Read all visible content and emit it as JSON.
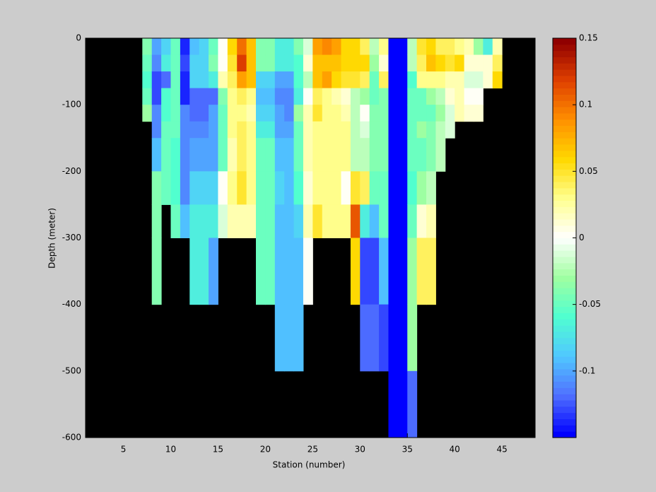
{
  "chart_data": {
    "type": "heatmap",
    "xlabel": "Station (number)",
    "ylabel": "Depth (meter)",
    "xlim": [
      1,
      48.5
    ],
    "ylim": [
      -600,
      0
    ],
    "xticks": [
      5,
      10,
      15,
      20,
      25,
      30,
      35,
      40,
      45
    ],
    "yticks": [
      0,
      -100,
      -200,
      -300,
      -400,
      -500,
      -600
    ],
    "clim": [
      -0.15,
      0.15
    ],
    "cticks": [
      0.15,
      0.1,
      0.05,
      0,
      -0.05,
      -0.1
    ],
    "colormap": [
      "#0000ff",
      "#5070ff",
      "#50c8ff",
      "#50ffd0",
      "#a0ffa0",
      "#ffffff",
      "#ffff90",
      "#ffd800",
      "#ff9000",
      "#e04000",
      "#900000"
    ],
    "background": "#000000",
    "x": [
      7,
      8,
      9,
      10,
      11,
      12,
      13,
      14,
      15,
      16,
      17,
      18,
      19,
      20,
      21,
      22,
      23,
      24,
      25,
      26,
      27,
      28,
      29,
      30,
      31,
      32,
      33,
      34,
      35,
      36,
      37,
      38,
      39,
      40,
      41,
      42,
      43,
      44
    ],
    "y": [
      0,
      -25,
      -50,
      -75,
      -100,
      -125,
      -150,
      -200,
      -250,
      -300,
      -400,
      -500
    ],
    "z": [
      [
        -0.04,
        -0.05,
        -0.06,
        -0.05,
        -0.03,
        null,
        null,
        null,
        null,
        null,
        null,
        null
      ],
      [
        -0.1,
        -0.11,
        -0.13,
        -0.13,
        -0.11,
        -0.11,
        -0.09,
        -0.04,
        -0.04,
        -0.04,
        null,
        null
      ],
      [
        -0.08,
        -0.07,
        -0.12,
        -0.06,
        -0.06,
        -0.05,
        -0.05,
        -0.05,
        null,
        null,
        null,
        null
      ],
      [
        -0.05,
        -0.05,
        -0.05,
        -0.05,
        -0.05,
        -0.05,
        -0.06,
        -0.06,
        -0.05,
        null,
        null,
        null
      ],
      [
        -0.14,
        -0.13,
        -0.14,
        -0.14,
        -0.11,
        -0.11,
        -0.11,
        -0.11,
        -0.09,
        null,
        null,
        null
      ],
      [
        -0.09,
        -0.08,
        -0.08,
        -0.12,
        -0.12,
        -0.11,
        -0.1,
        -0.08,
        -0.07,
        -0.07,
        null,
        null
      ],
      [
        -0.08,
        -0.08,
        -0.08,
        -0.12,
        -0.12,
        -0.11,
        -0.1,
        -0.08,
        -0.07,
        -0.07,
        null,
        null
      ],
      [
        -0.05,
        -0.04,
        -0.07,
        -0.12,
        -0.1,
        -0.1,
        -0.1,
        -0.08,
        -0.07,
        -0.1,
        null,
        null
      ],
      [
        0,
        0,
        0.02,
        -0.04,
        -0.05,
        -0.05,
        -0.05,
        0,
        -0.01,
        null,
        null,
        null
      ],
      [
        0.06,
        0.05,
        0.04,
        0.03,
        0.03,
        0.03,
        0.02,
        0.03,
        0.02,
        null,
        null,
        null
      ],
      [
        0.1,
        0.12,
        0.08,
        0.04,
        0.03,
        0.04,
        0.04,
        0.05,
        0.02,
        null,
        null,
        null
      ],
      [
        0.07,
        0.07,
        0.07,
        0.03,
        0.02,
        0.03,
        0.03,
        0.03,
        0.02,
        null,
        null,
        null
      ],
      [
        -0.04,
        -0.04,
        -0.08,
        -0.09,
        -0.08,
        -0.07,
        -0.05,
        -0.05,
        -0.05,
        -0.05,
        null,
        null
      ],
      [
        -0.04,
        -0.04,
        -0.08,
        -0.09,
        -0.08,
        -0.07,
        -0.05,
        -0.05,
        -0.05,
        -0.05,
        null,
        null
      ],
      [
        -0.07,
        -0.07,
        -0.1,
        -0.11,
        -0.1,
        -0.1,
        -0.09,
        -0.08,
        -0.09,
        -0.09,
        -0.09,
        null
      ],
      [
        -0.07,
        -0.07,
        -0.1,
        -0.11,
        -0.11,
        -0.1,
        -0.09,
        -0.09,
        -0.09,
        -0.09,
        -0.09,
        null
      ],
      [
        -0.04,
        -0.06,
        -0.06,
        -0.07,
        -0.03,
        -0.05,
        -0.05,
        -0.06,
        -0.08,
        -0.09,
        -0.09,
        null
      ],
      [
        -0.01,
        0.01,
        -0.02,
        0,
        0.02,
        0.02,
        0.02,
        0.01,
        0.02,
        0,
        null,
        null
      ],
      [
        0.08,
        0.07,
        0.07,
        0.04,
        0.05,
        0.03,
        0.03,
        0.03,
        0.05,
        null,
        null,
        null
      ],
      [
        0.09,
        0.07,
        0.08,
        0.03,
        0.03,
        0.03,
        0.03,
        0.03,
        0.03,
        null,
        null,
        null
      ],
      [
        0.08,
        0.07,
        0.06,
        0.02,
        0.03,
        0.03,
        0.03,
        0.03,
        0.03,
        null,
        null,
        null
      ],
      [
        0.06,
        0.06,
        0.05,
        0.01,
        0.02,
        0.03,
        0.03,
        0,
        0.03,
        null,
        null,
        null
      ],
      [
        0.06,
        0.06,
        0.05,
        -0.02,
        -0.02,
        -0.02,
        -0.02,
        0.05,
        0.11,
        0.06,
        null,
        null
      ],
      [
        0.04,
        0.06,
        0.04,
        -0.03,
        0,
        -0.01,
        -0.02,
        0.04,
        -0.07,
        -0.13,
        -0.12,
        null
      ],
      [
        -0.02,
        -0.03,
        -0.05,
        -0.05,
        -0.04,
        -0.04,
        -0.04,
        -0.05,
        -0.09,
        -0.13,
        -0.12,
        null
      ],
      [
        0.03,
        0.01,
        0.04,
        -0.04,
        -0.04,
        -0.04,
        -0.04,
        -0.05,
        -0.05,
        -0.09,
        -0.13,
        null
      ],
      [
        -0.15,
        -0.15,
        -0.15,
        -0.15,
        -0.15,
        -0.15,
        -0.15,
        -0.15,
        -0.15,
        -0.15,
        -0.15,
        -0.15
      ],
      [
        -0.15,
        -0.15,
        -0.15,
        -0.15,
        -0.15,
        -0.15,
        -0.15,
        -0.15,
        -0.15,
        -0.15,
        -0.15,
        -0.15
      ],
      [
        -0.02,
        -0.02,
        -0.06,
        -0.05,
        -0.05,
        -0.05,
        -0.05,
        -0.06,
        -0.05,
        -0.03,
        -0.03,
        -0.12
      ],
      [
        0.05,
        0.04,
        0.03,
        -0.05,
        -0.05,
        -0.03,
        -0.05,
        -0.03,
        0.01,
        0.04,
        null,
        null
      ],
      [
        0.06,
        0.07,
        0.03,
        -0.03,
        -0.05,
        -0.04,
        -0.04,
        -0.02,
        0.02,
        0.04,
        null,
        null
      ],
      [
        0.04,
        0.06,
        0.03,
        -0.02,
        -0.03,
        -0.02,
        -0.02,
        null,
        null,
        null,
        null,
        null
      ],
      [
        0.04,
        0.05,
        0.02,
        0.01,
        -0.01,
        -0.01,
        null,
        null,
        null,
        null,
        null,
        null
      ],
      [
        0.03,
        0.06,
        0.02,
        0.02,
        0.02,
        null,
        null,
        null,
        null,
        null,
        null,
        null
      ],
      [
        0.02,
        0.01,
        -0.01,
        0,
        0.01,
        null,
        null,
        null,
        null,
        null,
        null,
        null
      ],
      [
        -0.03,
        0.01,
        -0.01,
        0,
        0.01,
        null,
        null,
        null,
        null,
        null,
        null,
        null
      ],
      [
        -0.07,
        0.01,
        0.01,
        null,
        null,
        null,
        null,
        null,
        null,
        null,
        null,
        null
      ],
      [
        0.02,
        0.04,
        0.06,
        null,
        null,
        null,
        null,
        null,
        null,
        null,
        null,
        null
      ]
    ]
  }
}
